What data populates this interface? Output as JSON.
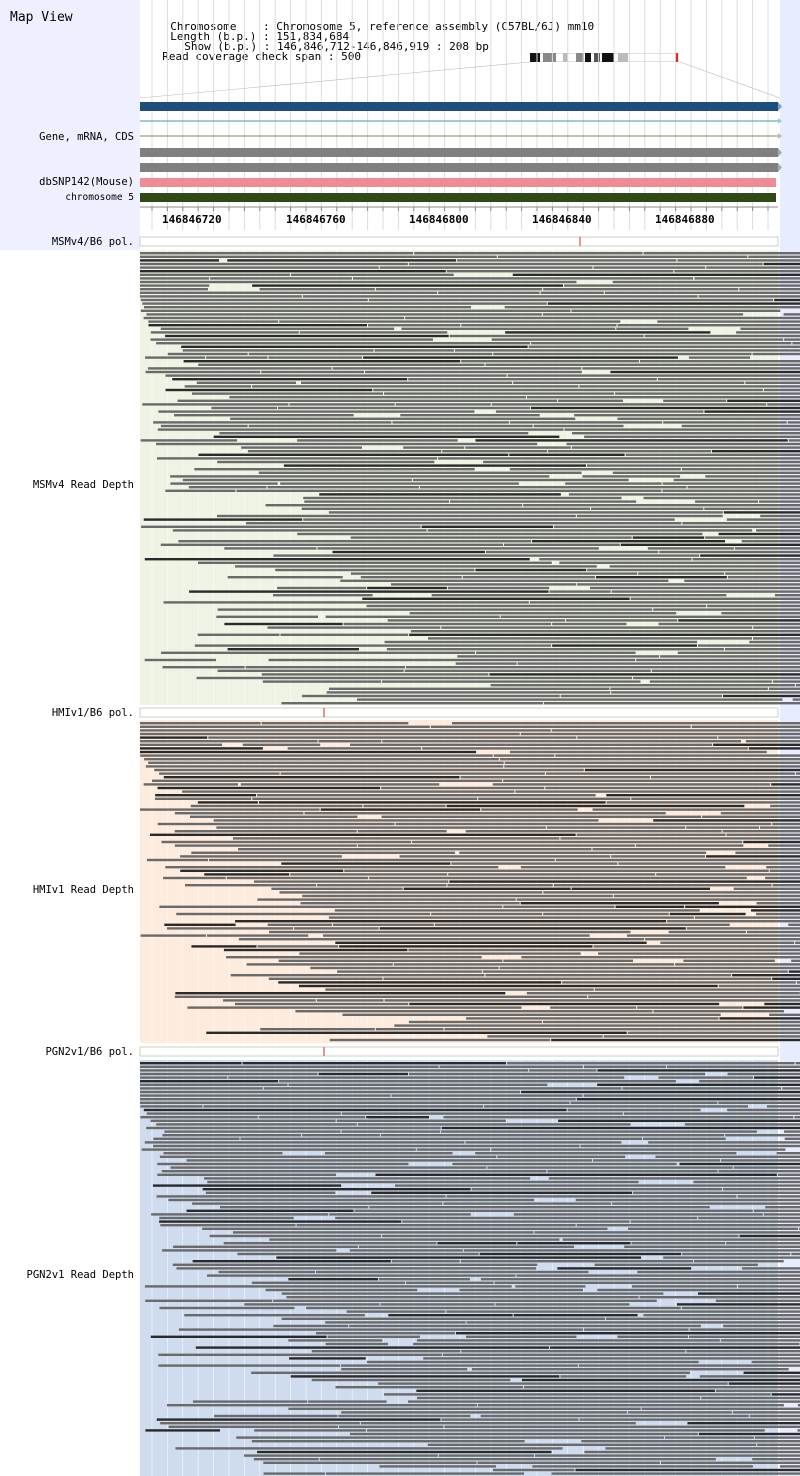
{
  "header": {
    "title": "Map View",
    "info": [
      {
        "key": "Chromosome",
        "sep": ":",
        "value": "Chromosome 5, reference assembly (C57BL/6J) mm10"
      },
      {
        "key": "Length (b.p.)",
        "sep": ":",
        "value": "151,834,684"
      },
      {
        "key": "Show (b.p.)",
        "sep": ":",
        "value": "146,846,712-146,846,919 : 208 bp"
      },
      {
        "key": "Read coverage check span",
        "sep": ":",
        "value": "500"
      }
    ]
  },
  "tracks": {
    "gene": "Gene, mRNA, CDS",
    "snp": "dbSNP142(Mouse)",
    "chrom": "chromosome 5"
  },
  "ruler": {
    "ticks": [
      "146846720",
      "146846760",
      "146846800",
      "146846840",
      "146846880"
    ]
  },
  "panels": [
    {
      "pol_label": "MSMv4/B6 pol.",
      "depth_label": "MSMv4 Read Depth",
      "bg": "#eef4e4",
      "snp_x": 580
    },
    {
      "pol_label": "HMIv1/B6 pol.",
      "depth_label": "HMIv1 Read Depth",
      "bg": "#fdebdd",
      "snp_x": 324
    },
    {
      "pol_label": "PGN2v1/B6 pol.",
      "depth_label": "PGN2v1 Read Depth",
      "bg": "#cfdcef",
      "snp_x": 324
    }
  ],
  "colors": {
    "gene_blue": "#1f4d7f",
    "snp_pink": "#ee8b93",
    "chrom_green": "#2f4a14",
    "read_gray": "#6a6a6a"
  }
}
